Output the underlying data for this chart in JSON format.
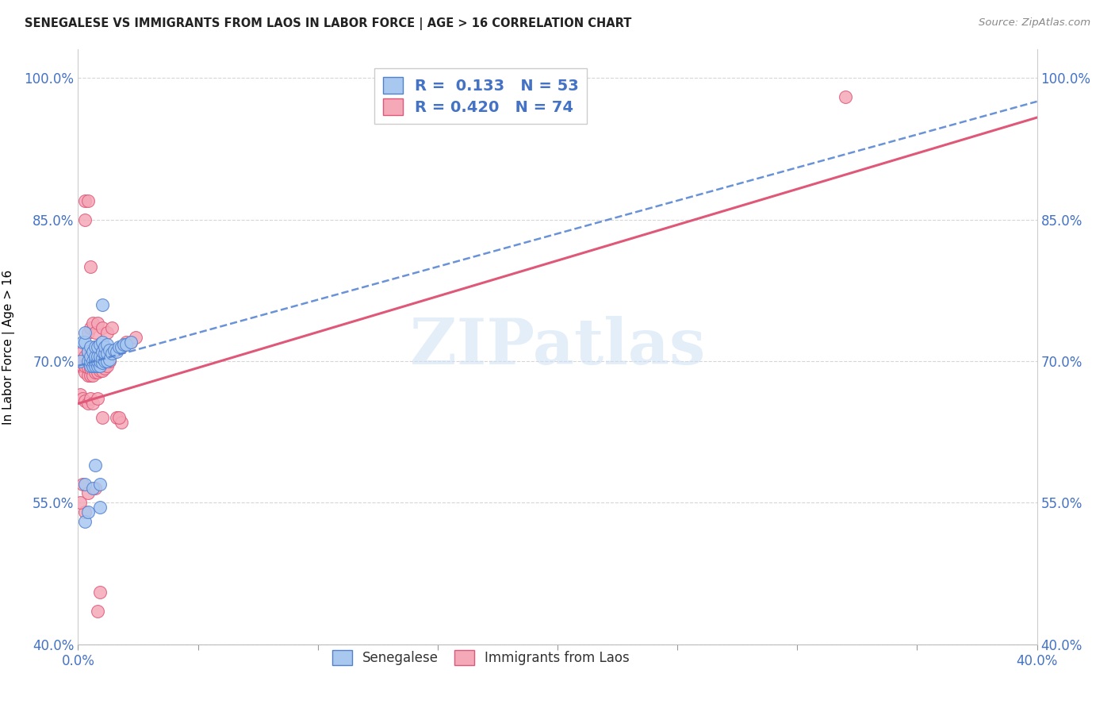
{
  "title": "SENEGALESE VS IMMIGRANTS FROM LAOS IN LABOR FORCE | AGE > 16 CORRELATION CHART",
  "source_text": "Source: ZipAtlas.com",
  "ylabel": "In Labor Force | Age > 16",
  "xlim": [
    0.0,
    0.4
  ],
  "ylim": [
    0.4,
    1.03
  ],
  "xtick_positions": [
    0.0,
    0.05,
    0.1,
    0.15,
    0.2,
    0.25,
    0.3,
    0.35,
    0.4
  ],
  "xticklabels": [
    "0.0%",
    "",
    "",
    "",
    "",
    "",
    "",
    "",
    "40.0%"
  ],
  "ytick_positions": [
    0.4,
    0.55,
    0.7,
    0.85,
    1.0
  ],
  "yticklabels": [
    "40.0%",
    "55.0%",
    "70.0%",
    "85.0%",
    "100.0%"
  ],
  "R_blue": 0.133,
  "N_blue": 53,
  "R_pink": 0.42,
  "N_pink": 74,
  "blue_color": "#a8c8f0",
  "pink_color": "#f4a8b8",
  "blue_line_color": "#5080d0",
  "pink_line_color": "#e05878",
  "watermark": "ZIPatlas",
  "legend_label_blue": "Senegalese",
  "legend_label_pink": "Immigrants from Laos",
  "blue_x": [
    0.001,
    0.002,
    0.003,
    0.003,
    0.004,
    0.004,
    0.005,
    0.005,
    0.005,
    0.005,
    0.006,
    0.006,
    0.006,
    0.007,
    0.007,
    0.007,
    0.007,
    0.008,
    0.008,
    0.008,
    0.008,
    0.009,
    0.009,
    0.009,
    0.009,
    0.01,
    0.01,
    0.01,
    0.01,
    0.011,
    0.011,
    0.011,
    0.012,
    0.012,
    0.012,
    0.013,
    0.013,
    0.014,
    0.015,
    0.016,
    0.017,
    0.018,
    0.019,
    0.02,
    0.022,
    0.003,
    0.006,
    0.007,
    0.009,
    0.009,
    0.003,
    0.004,
    0.01
  ],
  "blue_y": [
    0.7,
    0.72,
    0.72,
    0.73,
    0.7,
    0.71,
    0.695,
    0.7,
    0.705,
    0.715,
    0.695,
    0.7,
    0.71,
    0.695,
    0.7,
    0.705,
    0.715,
    0.695,
    0.7,
    0.705,
    0.715,
    0.695,
    0.7,
    0.705,
    0.718,
    0.698,
    0.703,
    0.71,
    0.72,
    0.7,
    0.708,
    0.715,
    0.7,
    0.708,
    0.718,
    0.702,
    0.712,
    0.708,
    0.712,
    0.71,
    0.715,
    0.715,
    0.718,
    0.718,
    0.72,
    0.57,
    0.565,
    0.59,
    0.57,
    0.545,
    0.53,
    0.54,
    0.76
  ],
  "pink_x": [
    0.001,
    0.001,
    0.002,
    0.002,
    0.003,
    0.003,
    0.003,
    0.004,
    0.004,
    0.004,
    0.004,
    0.005,
    0.005,
    0.005,
    0.005,
    0.006,
    0.006,
    0.006,
    0.007,
    0.007,
    0.007,
    0.007,
    0.008,
    0.008,
    0.008,
    0.009,
    0.009,
    0.009,
    0.01,
    0.01,
    0.01,
    0.011,
    0.011,
    0.012,
    0.012,
    0.013,
    0.014,
    0.015,
    0.016,
    0.018,
    0.02,
    0.022,
    0.024,
    0.001,
    0.002,
    0.003,
    0.004,
    0.005,
    0.006,
    0.008,
    0.004,
    0.005,
    0.006,
    0.007,
    0.008,
    0.01,
    0.012,
    0.014,
    0.003,
    0.004,
    0.003,
    0.003,
    0.002,
    0.01,
    0.001,
    0.004,
    0.007,
    0.016,
    0.018,
    0.017,
    0.009,
    0.008,
    0.005,
    0.32
  ],
  "pink_y": [
    0.695,
    0.7,
    0.695,
    0.71,
    0.688,
    0.695,
    0.705,
    0.685,
    0.693,
    0.7,
    0.71,
    0.685,
    0.692,
    0.7,
    0.71,
    0.685,
    0.695,
    0.705,
    0.688,
    0.695,
    0.705,
    0.715,
    0.688,
    0.695,
    0.705,
    0.69,
    0.698,
    0.71,
    0.69,
    0.7,
    0.712,
    0.692,
    0.705,
    0.695,
    0.71,
    0.7,
    0.708,
    0.71,
    0.712,
    0.715,
    0.72,
    0.72,
    0.725,
    0.665,
    0.66,
    0.658,
    0.655,
    0.66,
    0.655,
    0.66,
    0.73,
    0.735,
    0.74,
    0.73,
    0.74,
    0.735,
    0.73,
    0.735,
    0.87,
    0.87,
    0.85,
    0.54,
    0.57,
    0.64,
    0.55,
    0.56,
    0.565,
    0.64,
    0.635,
    0.64,
    0.455,
    0.435,
    0.8,
    0.98
  ],
  "pink_trendline_x0": 0.0,
  "pink_trendline_y0": 0.655,
  "pink_trendline_x1": 0.4,
  "pink_trendline_y1": 0.958,
  "blue_trendline_x0": 0.0,
  "blue_trendline_y0": 0.695,
  "blue_trendline_x1": 0.4,
  "blue_trendline_y1": 0.975,
  "grid_color": "#cccccc",
  "background_color": "#ffffff"
}
